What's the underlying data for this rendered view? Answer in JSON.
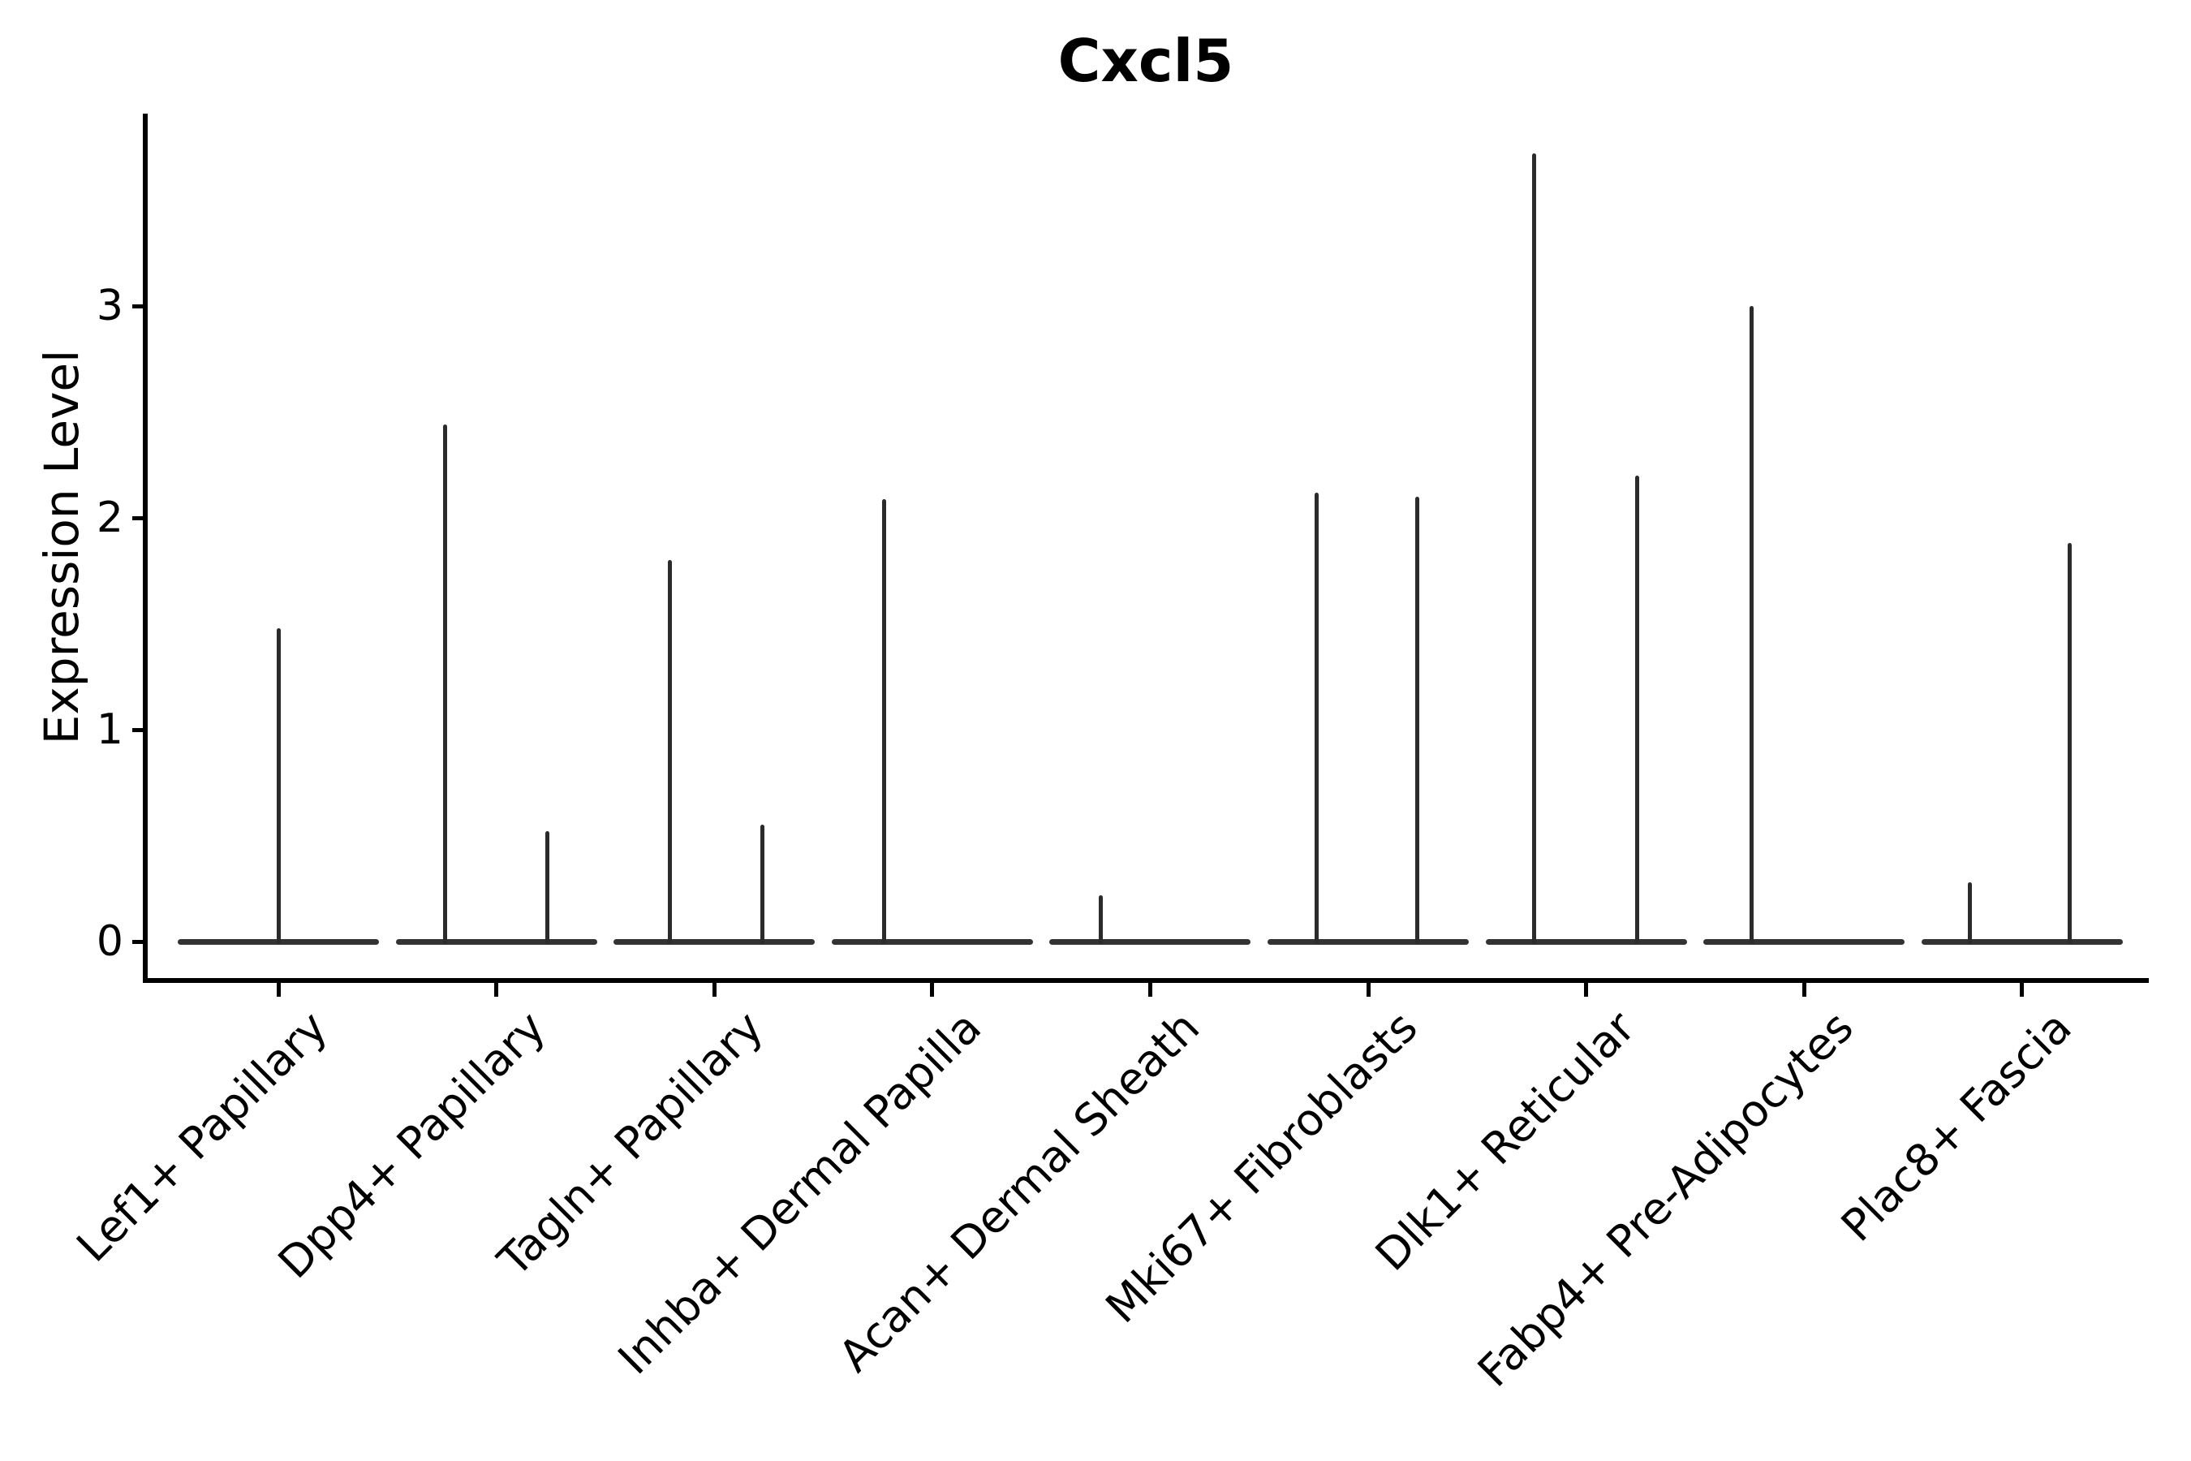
{
  "figure": {
    "title": "Cxcl5",
    "background": "#ffffff"
  },
  "y_axis": {
    "label": "Expression Level",
    "tick_labels": [
      "0",
      "1",
      "2",
      "3"
    ]
  },
  "x_axis": {
    "label": "",
    "tick_labels": [
      "Lef1+ Papillary",
      "Dpp4+ Papillary",
      "Tagln+ Papillary",
      "Inhba+ Dermal Papilla",
      "Acan+ Dermal Sheath",
      "Mki67+ Fibroblasts",
      "Dlk1+ Reticular",
      "Fabp4+ Pre-Adipocytes",
      "Plac8+ Fascia"
    ]
  },
  "chart_data": {
    "type": "violin",
    "title": "Cxcl5",
    "xlabel": "",
    "ylabel": "Expression Level",
    "categories": [
      "Lef1+ Papillary",
      "Dpp4+ Papillary",
      "Tagln+ Papillary",
      "Inhba+ Dermal Papilla",
      "Acan+ Dermal Sheath",
      "Mki67+ Fibroblasts",
      "Dlk1+ Reticular",
      "Fabp4+ Pre-Adipocytes",
      "Plac8+ Fascia"
    ],
    "yticks": [
      0,
      1,
      2,
      3
    ],
    "ylim": [
      -0.18,
      3.91
    ],
    "grid": false,
    "legend": "none",
    "description": "Violin plot of Cxcl5 expression per fibroblast cluster; expression is near 0 in most cells so each violin collapses to a flat line at 0 with thin density spikes reaching the listed maxima.",
    "violins": [
      {
        "category": "Lef1+ Papillary",
        "baseline_value": 0,
        "spikes": [
          {
            "offset": 0.0,
            "max": 1.48
          }
        ]
      },
      {
        "category": "Dpp4+ Papillary",
        "baseline_value": 0,
        "spikes": [
          {
            "offset": -0.235,
            "max": 2.44
          },
          {
            "offset": 0.235,
            "max": 0.52
          }
        ]
      },
      {
        "category": "Tagln+ Papillary",
        "baseline_value": 0,
        "spikes": [
          {
            "offset": -0.205,
            "max": 1.8
          },
          {
            "offset": 0.22,
            "max": 0.55
          }
        ]
      },
      {
        "category": "Inhba+ Dermal Papilla",
        "baseline_value": 0,
        "spikes": [
          {
            "offset": -0.22,
            "max": 2.09
          }
        ]
      },
      {
        "category": "Acan+ Dermal Sheath",
        "baseline_value": 0,
        "spikes": [
          {
            "offset": -0.225,
            "max": 0.22
          }
        ]
      },
      {
        "category": "Mki67+ Fibroblasts",
        "baseline_value": 0,
        "spikes": [
          {
            "offset": -0.235,
            "max": 2.12
          },
          {
            "offset": 0.225,
            "max": 2.1
          }
        ]
      },
      {
        "category": "Dlk1+ Reticular",
        "baseline_value": 0,
        "spikes": [
          {
            "offset": -0.24,
            "max": 3.72
          },
          {
            "offset": 0.235,
            "max": 2.2
          }
        ]
      },
      {
        "category": "Fabp4+ Pre-Adipocytes",
        "baseline_value": 0,
        "spikes": [
          {
            "offset": -0.24,
            "max": 3.0
          }
        ]
      },
      {
        "category": "Plac8+ Fascia",
        "baseline_value": 0,
        "spikes": [
          {
            "offset": -0.24,
            "max": 0.28
          },
          {
            "offset": 0.22,
            "max": 1.88
          }
        ]
      }
    ]
  },
  "style": {
    "axis_color": "#000000",
    "violin_color": "#2b2b2b",
    "text_color": "#000000",
    "background": "#ffffff"
  }
}
